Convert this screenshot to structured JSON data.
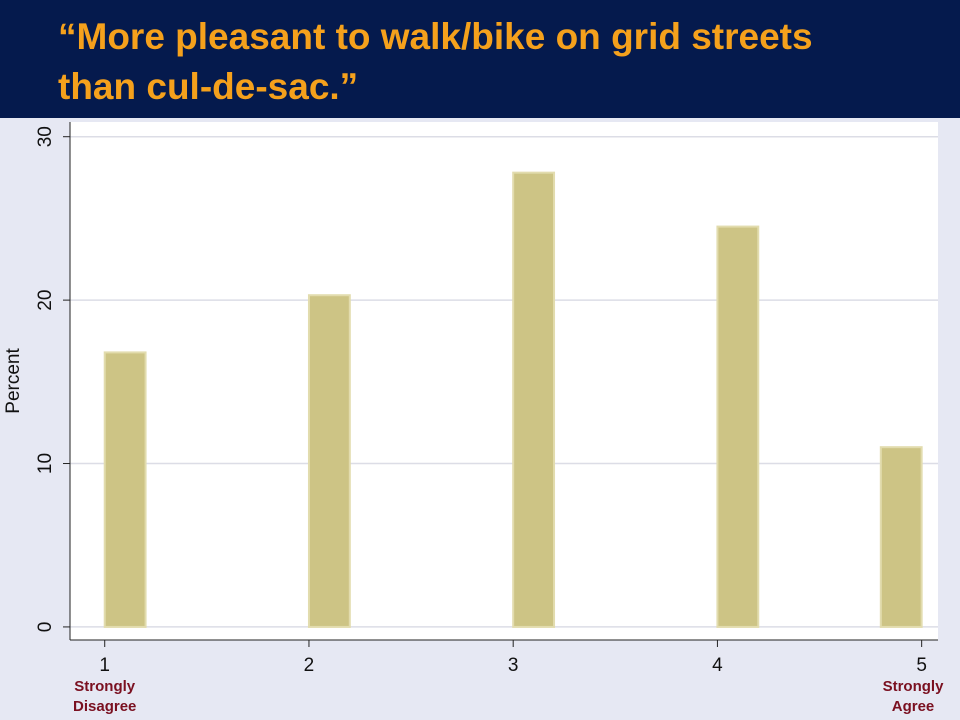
{
  "chart_data": {
    "type": "bar",
    "title": "“More pleasant to walk/bike on grid streets than cul-de-sac.”",
    "y_label": "Percent",
    "x": [
      1,
      2,
      3,
      4,
      5
    ],
    "values": [
      16.8,
      20.3,
      27.8,
      24.5,
      11.0
    ],
    "color": "#cdc485",
    "xlim": [
      0.83,
      5.08
    ],
    "xticks": [
      1,
      2,
      3,
      4,
      5
    ],
    "ylim": [
      -0.8,
      30.9
    ],
    "yticks": [
      0,
      10,
      20,
      30
    ],
    "grid": true,
    "annotations": [
      {
        "text": "Strongly Disagree",
        "x": 1
      },
      {
        "text": "Strongly Agree",
        "x": 5
      }
    ]
  }
}
